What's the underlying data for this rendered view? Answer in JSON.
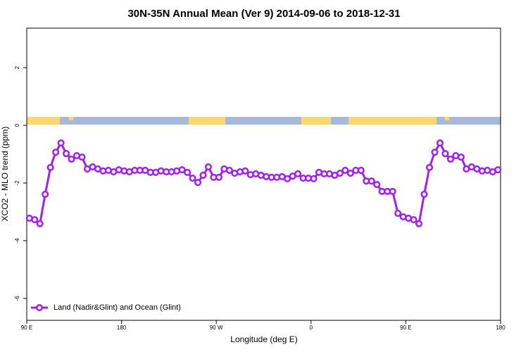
{
  "chart_data": {
    "type": "line",
    "title": "30N-35N Annual Mean (Ver 9)   2014-09-06 to 2018-12-31",
    "x_label": "Longitude (deg E)",
    "y_label": "XCO2 - MLO trend (ppm)",
    "x": [
      92.5,
      97.5,
      102.5,
      107.5,
      112.5,
      117.5,
      122.5,
      127.5,
      132.5,
      137.5,
      142.5,
      147.5,
      152.5,
      157.5,
      162.5,
      167.5,
      172.5,
      177.5,
      182.5,
      187.5,
      192.5,
      197.5,
      202.5,
      207.5,
      212.5,
      217.5,
      222.5,
      227.5,
      232.5,
      237.5,
      242.5,
      247.5,
      252.5,
      257.5,
      262.5,
      267.5,
      272.5,
      277.5,
      282.5,
      287.5,
      292.5,
      297.5,
      302.5,
      307.5,
      312.5,
      317.5,
      322.5,
      327.5,
      332.5,
      337.5,
      342.5,
      347.5,
      352.5,
      357.5,
      362.5,
      367.5,
      372.5,
      377.5,
      382.5,
      387.5,
      392.5,
      397.5,
      402.5,
      407.5,
      412.5,
      417.5,
      422.5,
      427.5,
      432.5,
      437.5,
      442.5,
      447.5,
      452.5,
      457.5,
      462.5,
      467.5,
      472.5,
      477.5,
      482.5,
      487.5,
      492.5,
      497.5,
      502.5,
      507.5,
      512.5,
      517.5,
      522.5,
      527.5,
      532.5,
      537.5
    ],
    "series": [
      {
        "name": "Land (Nadir&Glint) and Ocean (Glint)",
        "color": "#a020f0",
        "values": [
          -3.22,
          -3.27,
          -3.41,
          -2.39,
          -1.46,
          -0.93,
          -0.61,
          -0.98,
          -1.17,
          -1.05,
          -1.1,
          -1.51,
          -1.44,
          -1.51,
          -1.58,
          -1.56,
          -1.61,
          -1.54,
          -1.58,
          -1.61,
          -1.56,
          -1.56,
          -1.56,
          -1.63,
          -1.63,
          -1.58,
          -1.61,
          -1.61,
          -1.58,
          -1.54,
          -1.63,
          -1.83,
          -1.98,
          -1.73,
          -1.44,
          -1.8,
          -1.8,
          -1.51,
          -1.56,
          -1.66,
          -1.61,
          -1.58,
          -1.71,
          -1.68,
          -1.73,
          -1.78,
          -1.8,
          -1.8,
          -1.78,
          -1.85,
          -1.76,
          -1.68,
          -1.83,
          -1.83,
          -1.85,
          -1.63,
          -1.68,
          -1.68,
          -1.73,
          -1.66,
          -1.56,
          -1.66,
          -1.56,
          -1.56,
          -1.93,
          -1.93,
          -2.05,
          -2.29,
          -2.29,
          -2.29,
          -3.05,
          -3.17,
          -3.22,
          -3.27,
          -3.41,
          -2.39,
          -1.46,
          -0.93,
          -0.61,
          -0.98,
          -1.17,
          -1.05,
          -1.1,
          -1.51,
          -1.44,
          -1.51,
          -1.58,
          -1.56,
          -1.61,
          -1.54
        ]
      }
    ],
    "xlim": [
      90,
      540
    ],
    "xticks": [
      {
        "value": 90,
        "label": "90 E"
      },
      180,
      {
        "value": 270,
        "label": "90 W"
      },
      {
        "value": 360,
        "label": "0"
      },
      {
        "value": 450,
        "label": "90 E"
      },
      {
        "value": 540,
        "label": "180"
      }
    ],
    "ylim": [
      -6.76,
      3.37
    ],
    "yticks": [
      -6,
      -4,
      -2,
      0,
      2
    ],
    "legend": "bottom-left"
  }
}
